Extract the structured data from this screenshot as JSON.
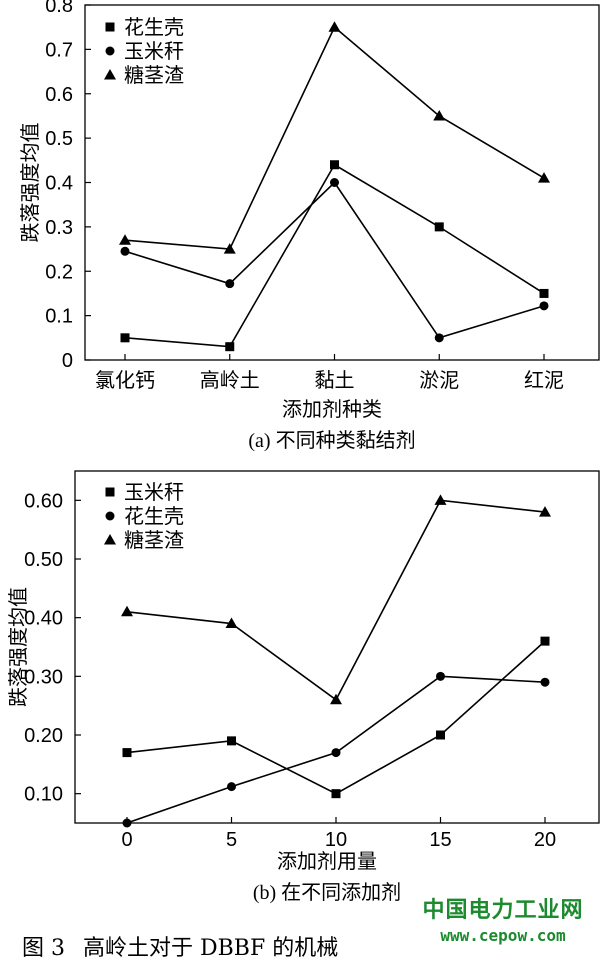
{
  "chart_data": [
    {
      "type": "line",
      "xlabel": "添加剂种类",
      "ylabel": "跌落强度均值",
      "caption": "(a) 不同种类黏结剂",
      "categories": [
        "氯化钙",
        "高岭土",
        "黏土",
        "淤泥",
        "红泥"
      ],
      "ylim": [
        0,
        0.8
      ],
      "yticks": [
        "0",
        "0.1",
        "0.2",
        "0.3",
        "0.4",
        "0.5",
        "0.6",
        "0.7",
        "0.8"
      ],
      "legend_position": "top-left",
      "series": [
        {
          "name": "花生壳",
          "marker": "square",
          "values": [
            0.05,
            0.03,
            0.44,
            0.3,
            0.15
          ]
        },
        {
          "name": "玉米秆",
          "marker": "circle",
          "values": [
            0.245,
            0.172,
            0.4,
            0.05,
            0.122
          ]
        },
        {
          "name": "糖茎渣",
          "marker": "triangle",
          "values": [
            0.27,
            0.25,
            0.75,
            0.55,
            0.41
          ]
        }
      ]
    },
    {
      "type": "line",
      "xlabel": "添加剂用量",
      "ylabel": "跌落强度均值",
      "caption": "(b) 在不同添加剂",
      "x": [
        0,
        5,
        10,
        15,
        20
      ],
      "xticks": [
        "0",
        "5",
        "10",
        "15",
        "20"
      ],
      "ylim": [
        0.05,
        0.65
      ],
      "yticks": [
        "0.10",
        "0.20",
        "0.30",
        "0.40",
        "0.50",
        "0.60"
      ],
      "legend_position": "top-left",
      "series": [
        {
          "name": "玉米秆",
          "marker": "square",
          "values": [
            0.17,
            0.19,
            0.1,
            0.2,
            0.36
          ]
        },
        {
          "name": "花生壳",
          "marker": "circle",
          "values": [
            0.05,
            0.112,
            0.17,
            0.3,
            0.29
          ]
        },
        {
          "name": "糖茎渣",
          "marker": "triangle",
          "values": [
            0.41,
            0.39,
            0.26,
            0.6,
            0.58
          ]
        }
      ]
    }
  ],
  "figure_caption": {
    "label": "图 3",
    "text": "高岭土对于 DBBF 的机械"
  },
  "watermark": {
    "title": "中国电力工业网",
    "url": "www.cepow.com"
  }
}
